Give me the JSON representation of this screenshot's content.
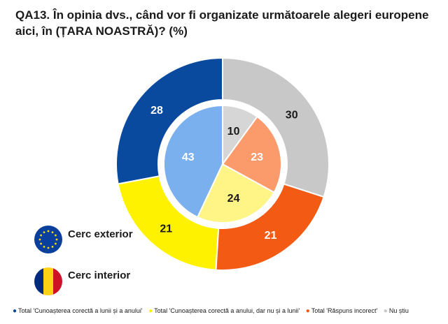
{
  "title": "QA13. În opinia dvs., când vor fi organizate următoarele alegeri europene aici, în (ȚARA NOASTRĂ)? (%)",
  "legend_flags": {
    "outer_label": "Cerc exterior",
    "inner_label": "Cerc interior",
    "outer_icon": "eu-flag-icon",
    "inner_icon": "romania-flag-icon"
  },
  "bottom_legend": [
    {
      "label": "Total 'Cunoașterea corectă a lunii și a anului'",
      "color": "#0a4a9e"
    },
    {
      "label": "Total 'Cunoașterea corectă a anului, dar nu și a lunii'",
      "color": "#fff200"
    },
    {
      "label": "Total 'Răspuns incorect'",
      "color": "#f35a14"
    },
    {
      "label": "Nu știu",
      "color": "#c8c8c8"
    }
  ],
  "chart_data": {
    "type": "donut",
    "categories": [
      "Total 'Cunoașterea corectă a lunii și a anului'",
      "Total 'Cunoașterea corectă a anului, dar nu și a lunii'",
      "Total 'Răspuns incorect'",
      "Nu știu"
    ],
    "series": [
      {
        "name": "Cerc exterior",
        "values": [
          28,
          21,
          21,
          30
        ],
        "colors": [
          "#0a4a9e",
          "#fff200",
          "#f35a14",
          "#c8c8c8"
        ]
      },
      {
        "name": "Cerc interior",
        "values": [
          43,
          24,
          23,
          10
        ],
        "colors": [
          "#7bb0ef",
          "#fff587",
          "#fb9a6a",
          "#d6d6d6"
        ]
      }
    ]
  }
}
